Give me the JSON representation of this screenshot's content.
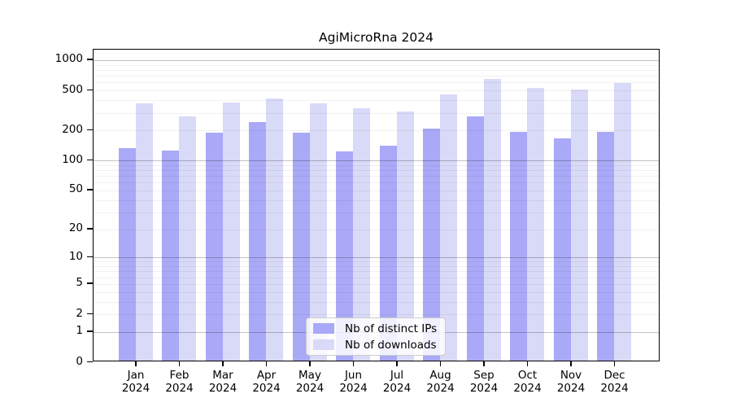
{
  "chart_data": {
    "type": "bar",
    "title": "AgiMicroRna 2024",
    "yscale": "log1p",
    "grid": true,
    "legend_position": "lower center",
    "categories": [
      "Jan 2024",
      "Feb 2024",
      "Mar 2024",
      "Apr 2024",
      "May 2024",
      "Jun 2024",
      "Jul 2024",
      "Aug 2024",
      "Sep 2024",
      "Oct 2024",
      "Nov 2024",
      "Dec 2024"
    ],
    "series": [
      {
        "name": "Nb of distinct IPs",
        "color": "#a9a9f7",
        "values": [
          128,
          122,
          182,
          233,
          183,
          119,
          135,
          200,
          265,
          186,
          160,
          186
        ]
      },
      {
        "name": "Nb of downloads",
        "color": "#d9d9f8",
        "values": [
          358,
          265,
          366,
          401,
          359,
          320,
          297,
          440,
          627,
          511,
          492,
          571
        ]
      }
    ],
    "y_ticks": [
      0,
      1,
      2,
      5,
      10,
      20,
      50,
      100,
      200,
      500,
      1000
    ],
    "ylim": [
      0,
      1274
    ],
    "xlabel": "",
    "ylabel": ""
  },
  "colors": {
    "grid_minor": "#eeeeee",
    "grid_major": "#c3c3c3",
    "axis": "#000000"
  }
}
